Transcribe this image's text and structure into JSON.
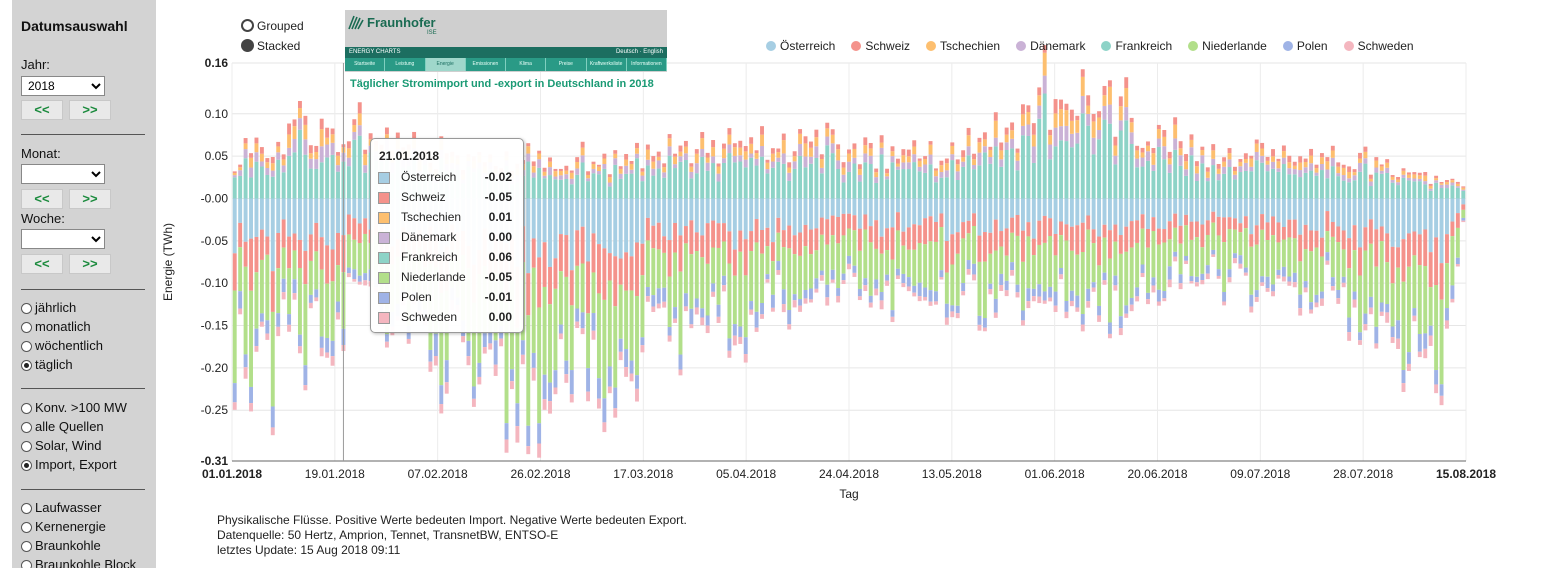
{
  "sidebar": {
    "title": "Datumsauswahl",
    "year_label": "Jahr:",
    "year_value": "2018",
    "month_label": "Monat:",
    "month_value": "",
    "week_label": "Woche:",
    "week_value": "",
    "prev_label": "<<",
    "next_label": ">>",
    "period_options": [
      {
        "label": "jährlich",
        "selected": false
      },
      {
        "label": "monatlich",
        "selected": false
      },
      {
        "label": "wöchentlich",
        "selected": false
      },
      {
        "label": "täglich",
        "selected": true
      }
    ],
    "source_options": [
      {
        "label": "Konv. >100 MW",
        "selected": false
      },
      {
        "label": "alle Quellen",
        "selected": false
      },
      {
        "label": "Solar, Wind",
        "selected": false
      },
      {
        "label": "Import, Export",
        "selected": true
      }
    ],
    "type_options": [
      {
        "label": "Laufwasser",
        "selected": false
      },
      {
        "label": "Kernenergie",
        "selected": false
      },
      {
        "label": "Braunkohle",
        "selected": false
      },
      {
        "label": "Braunkohle Block",
        "selected": false
      }
    ]
  },
  "mode": {
    "grouped": "Grouped",
    "stacked": "Stacked",
    "selected": "stacked"
  },
  "logo": {
    "brand": "Fraunhofer",
    "ise": "ISE",
    "band_left": "ENERGY CHARTS",
    "band_right": "Deutsch · English",
    "nav": [
      "Startseite",
      "Leistung",
      "Energie",
      "Emissionen",
      "Klima",
      "Preise",
      "Kraftwerksliste",
      "Informationen"
    ],
    "nav_active": 2
  },
  "chart_data": {
    "type": "bar",
    "stacked": true,
    "title": "Täglicher Stromimport und -export in Deutschland in 2018",
    "xlabel": "Tag",
    "ylabel": "Energie (TWh)",
    "ylim": [
      -0.31,
      0.16
    ],
    "yticks": [
      0.16,
      0.1,
      0.05,
      -0.0,
      -0.05,
      -0.1,
      -0.15,
      -0.2,
      -0.25,
      -0.31
    ],
    "ytick_labels": [
      "0.16",
      "0.10",
      "0.05",
      "-0.00",
      "-0.05",
      "-0.10",
      "-0.15",
      "-0.20",
      "-0.25",
      "-0.31"
    ],
    "xlim": [
      "01.01.2018",
      "15.08.2018"
    ],
    "xtick_labels": [
      "01.01.2018",
      "19.01.2018",
      "07.02.2018",
      "26.02.2018",
      "17.03.2018",
      "05.04.2018",
      "24.04.2018",
      "13.05.2018",
      "01.06.2018",
      "20.06.2018",
      "09.07.2018",
      "28.07.2018",
      "15.08.2018"
    ],
    "grid": true,
    "legend_position": "top-right",
    "series": [
      {
        "name": "Österreich",
        "color": "#a6cee3"
      },
      {
        "name": "Schweiz",
        "color": "#f4928b"
      },
      {
        "name": "Tschechien",
        "color": "#fdbf6f"
      },
      {
        "name": "Dänemark",
        "color": "#cab2d6"
      },
      {
        "name": "Frankreich",
        "color": "#8dd3c7"
      },
      {
        "name": "Niederlande",
        "color": "#b2df8a"
      },
      {
        "name": "Polen",
        "color": "#9fb3e6"
      },
      {
        "name": "Schweden",
        "color": "#f4b6bf"
      }
    ],
    "days": 227,
    "anchors": {
      "note": "selected daily totals (TWh) read from the bars",
      "top": [
        [
          0,
          0.05
        ],
        [
          14,
          0.115
        ],
        [
          50,
          0.05
        ],
        [
          100,
          0.09
        ],
        [
          130,
          0.06
        ],
        [
          145,
          0.13
        ],
        [
          152,
          0.16
        ],
        [
          178,
          0.07
        ],
        [
          200,
          0.07
        ],
        [
          226,
          0.02
        ]
      ],
      "bottom": [
        [
          0,
          -0.22
        ],
        [
          2,
          -0.28
        ],
        [
          23,
          -0.15
        ],
        [
          50,
          -0.28
        ],
        [
          57,
          -0.31
        ],
        [
          80,
          -0.2
        ],
        [
          100,
          -0.15
        ],
        [
          150,
          -0.16
        ],
        [
          180,
          -0.13
        ],
        [
          200,
          -0.14
        ],
        [
          222,
          -0.24
        ],
        [
          226,
          -0.05
        ]
      ]
    },
    "tooltip": {
      "date": "21.01.2018",
      "values": [
        {
          "name": "Österreich",
          "value": "-0.02"
        },
        {
          "name": "Schweiz",
          "value": "-0.05"
        },
        {
          "name": "Tschechien",
          "value": "0.01"
        },
        {
          "name": "Dänemark",
          "value": "0.00"
        },
        {
          "name": "Frankreich",
          "value": "0.06"
        },
        {
          "name": "Niederlande",
          "value": "-0.05"
        },
        {
          "name": "Polen",
          "value": "-0.01"
        },
        {
          "name": "Schweden",
          "value": "0.00"
        }
      ]
    }
  },
  "notes": {
    "line1": "Physikalische Flüsse. Positive Werte bedeuten Import. Negative Werte bedeuten Export.",
    "line2": "Datenquelle: 50 Hertz, Amprion, Tennet, TransnetBW, ENTSO-E",
    "line3": "letztes Update: 15 Aug 2018 09:11"
  }
}
